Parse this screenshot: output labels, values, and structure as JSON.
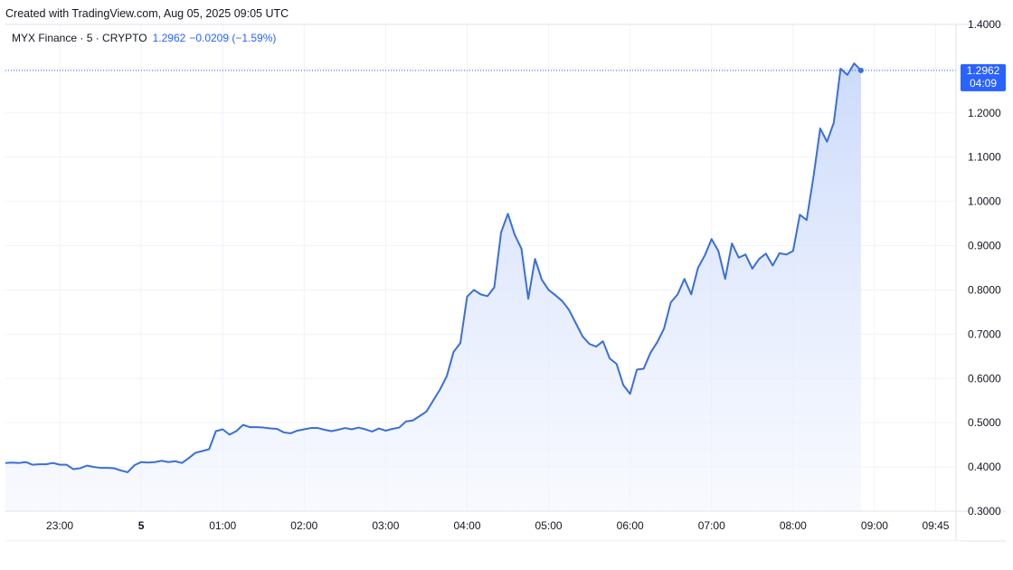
{
  "header": {
    "created_with": "Created with TradingView.com, Aug 05, 2025 09:05 UTC"
  },
  "legend": {
    "symbol": "MYX Finance · 5 · CRYPTO",
    "last_price": "1.2962",
    "change": "−0.0209 (−1.59%)"
  },
  "price_badge": {
    "price": "1.2962",
    "countdown": "04:09"
  },
  "colors": {
    "line": "#3b6fd6",
    "area_top": "#c9d8fb",
    "area_bottom": "#f3f6fe",
    "grid": "#f0f3fa",
    "badge": "#2962ff",
    "dotted": "#2962ff"
  },
  "chart_data": {
    "type": "area",
    "ylim": [
      0.3,
      1.4
    ],
    "y_ticks": [
      "1.4000",
      "1.3000",
      "1.2000",
      "1.1000",
      "1.0000",
      "0.9000",
      "0.8000",
      "0.7000",
      "0.6000",
      "0.5000",
      "0.4000",
      "0.3000"
    ],
    "x_ticks": [
      {
        "label": "23:00",
        "t": "2025-08-04T23:00",
        "bold": false
      },
      {
        "label": "5",
        "t": "2025-08-05T00:00",
        "bold": true
      },
      {
        "label": "01:00",
        "t": "2025-08-05T01:00",
        "bold": false
      },
      {
        "label": "02:00",
        "t": "2025-08-05T02:00",
        "bold": false
      },
      {
        "label": "03:00",
        "t": "2025-08-05T03:00",
        "bold": false
      },
      {
        "label": "04:00",
        "t": "2025-08-05T04:00",
        "bold": false
      },
      {
        "label": "05:00",
        "t": "2025-08-05T05:00",
        "bold": false
      },
      {
        "label": "06:00",
        "t": "2025-08-05T06:00",
        "bold": false
      },
      {
        "label": "07:00",
        "t": "2025-08-05T07:00",
        "bold": false
      },
      {
        "label": "08:00",
        "t": "2025-08-05T08:00",
        "bold": false
      },
      {
        "label": "09:00",
        "t": "2025-08-05T09:00",
        "bold": false
      },
      {
        "label": "09:45",
        "t": "2025-08-05T09:45",
        "bold": false
      }
    ],
    "x_start": "2025-08-04T22:20",
    "x_end": "2025-08-05T10:00",
    "interval_minutes": 5,
    "series": [
      {
        "x_start": "2025-08-04T22:20",
        "values": [
          0.409,
          0.41,
          0.409,
          0.411,
          0.405,
          0.406,
          0.406,
          0.409,
          0.405,
          0.405,
          0.395,
          0.397,
          0.403,
          0.4,
          0.398,
          0.398,
          0.397,
          0.392,
          0.388,
          0.404,
          0.411,
          0.41,
          0.411,
          0.414,
          0.411,
          0.413,
          0.409,
          0.42,
          0.432,
          0.436,
          0.44,
          0.481,
          0.485,
          0.473,
          0.481,
          0.495,
          0.49,
          0.49,
          0.489,
          0.487,
          0.486,
          0.478,
          0.476,
          0.482,
          0.485,
          0.488,
          0.488,
          0.484,
          0.481,
          0.484,
          0.488,
          0.485,
          0.489,
          0.485,
          0.48,
          0.487,
          0.482,
          0.486,
          0.489,
          0.503,
          0.505,
          0.515,
          0.525,
          0.55,
          0.575,
          0.605,
          0.66,
          0.68,
          0.785,
          0.8,
          0.79,
          0.786,
          0.806,
          0.93,
          0.972,
          0.925,
          0.893,
          0.78,
          0.87,
          0.823,
          0.8,
          0.788,
          0.775,
          0.755,
          0.725,
          0.695,
          0.678,
          0.672,
          0.684,
          0.645,
          0.633,
          0.585,
          0.565,
          0.62,
          0.622,
          0.658,
          0.682,
          0.713,
          0.772,
          0.79,
          0.825,
          0.79,
          0.85,
          0.878,
          0.915,
          0.888,
          0.825,
          0.905,
          0.873,
          0.88,
          0.848,
          0.87,
          0.882,
          0.855,
          0.883,
          0.88,
          0.888,
          0.97,
          0.958,
          1.055,
          1.165,
          1.135,
          1.178,
          1.3,
          1.286,
          1.312,
          1.296
        ]
      }
    ]
  }
}
